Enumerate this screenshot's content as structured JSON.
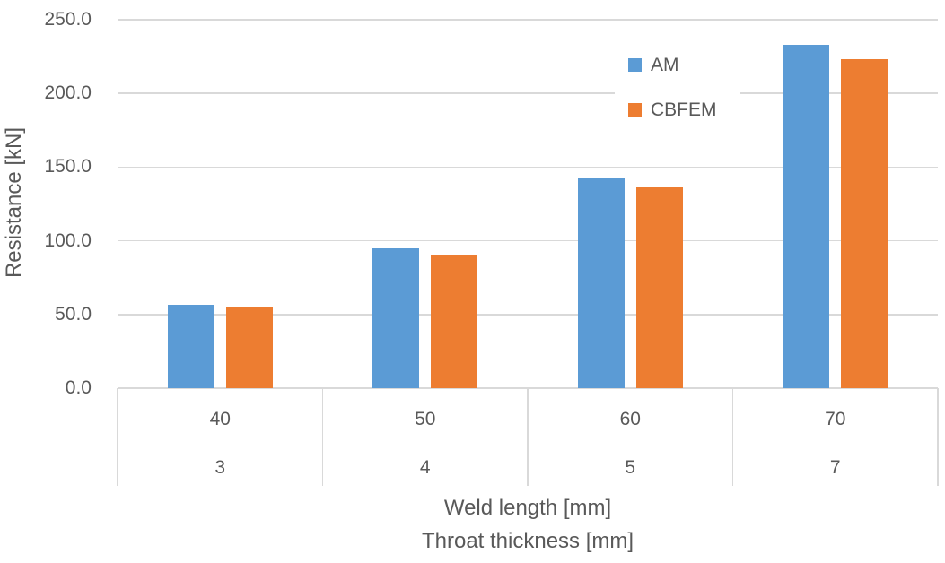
{
  "chart_data": {
    "type": "bar",
    "title": "",
    "ylabel": "Resistance [kN]",
    "ylim": [
      0,
      250
    ],
    "ytick_step": 50,
    "ytick_labels": [
      "0.0",
      "50.0",
      "100.0",
      "150.0",
      "200.0",
      "250.0"
    ],
    "grid": "horizontal",
    "legend_position": "top-right-inside",
    "category_rows": [
      {
        "label": "Weld length [mm]",
        "values": [
          "40",
          "50",
          "60",
          "70"
        ]
      },
      {
        "label": "Throat thickness [mm]",
        "values": [
          "3",
          "4",
          "5",
          "7"
        ]
      }
    ],
    "series": [
      {
        "name": "AM",
        "color": "#5B9BD5",
        "values": [
          56.6,
          95.0,
          142.2,
          232.7
        ]
      },
      {
        "name": "CBFEM",
        "color": "#ED7D31",
        "values": [
          54.8,
          90.8,
          136.0,
          223.2
        ]
      }
    ]
  },
  "colors": {
    "text": "#595959",
    "gridline": "#D9D9D9",
    "axis_line": "#D9D9D9",
    "background": "#FFFFFF"
  }
}
